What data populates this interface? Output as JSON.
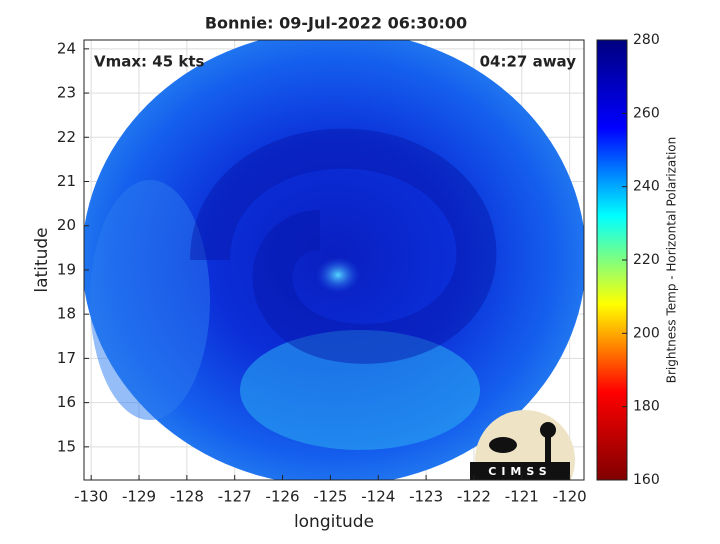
{
  "chart_data": {
    "type": "image",
    "title": "Bonnie: 09-Jul-2022 06:30:00",
    "annotations": [
      "Vmax: 45 kts",
      "04:27 away"
    ],
    "x_label": "longitude",
    "y_label": "latitude",
    "xlim": [
      -130.15,
      -119.7
    ],
    "xticks": [
      -130,
      -129,
      -128,
      -127,
      -126,
      -125,
      -124,
      -123,
      -122,
      -121,
      -120
    ],
    "ylim": [
      14.25,
      24.2
    ],
    "yticks": [
      15,
      16,
      17,
      18,
      19,
      20,
      21,
      22,
      23,
      24
    ],
    "grid": true,
    "colorbar": {
      "label": "Brightness Temp - Horizontal Polarization",
      "colormap": "jet",
      "lim": [
        160,
        280
      ],
      "ticks": [
        160,
        180,
        200,
        220,
        240,
        260,
        280
      ]
    },
    "logo_text": "CIMSS"
  }
}
